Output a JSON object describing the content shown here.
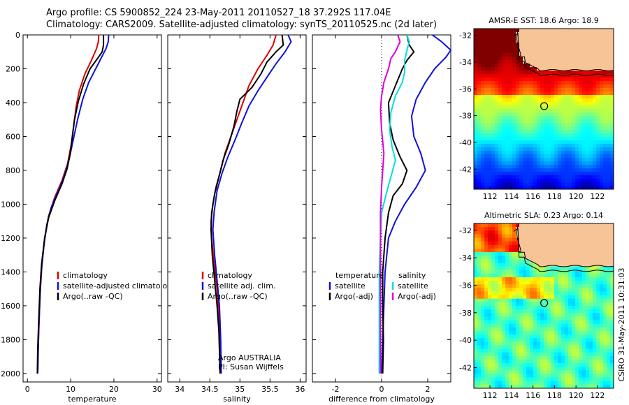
{
  "header": {
    "line1": "Argo profile: CS 5900852_224 23-May-2011 20110527_18 37.292S 117.04E",
    "line2": "Climatology: CARS2009. Satellite-adjusted climatology: synTS_20110525.nc (2d later)"
  },
  "side_note": "CSIRO 31-May-2011 10:31:03",
  "colors": {
    "climatology": "#dd0000",
    "satellite": "#1010dd",
    "argo": "#000000",
    "sat_salinity": "#00dddd",
    "argo_salinity": "#dd00dd"
  },
  "chart_data": [
    {
      "type": "line",
      "xlabel": "temperature",
      "xlim": [
        -1,
        31
      ],
      "xticks": [
        0,
        10,
        20,
        30
      ],
      "ylim": [
        2050,
        0
      ],
      "yticks": [
        0,
        200,
        400,
        600,
        800,
        1000,
        1200,
        1400,
        1600,
        1800,
        2000
      ],
      "legend": [
        "climatology",
        "satellite-adjusted climatolog",
        "Argo(..raw -QC)"
      ],
      "series": [
        {
          "name": "climatology",
          "color": "#dd0000",
          "points": [
            [
              16.5,
              0
            ],
            [
              16.4,
              40
            ],
            [
              16.0,
              80
            ],
            [
              14.8,
              150
            ],
            [
              13.3,
              230
            ],
            [
              12.0,
              330
            ],
            [
              11.3,
              420
            ],
            [
              10.8,
              520
            ],
            [
              10.2,
              640
            ],
            [
              9.3,
              760
            ],
            [
              8.0,
              860
            ],
            [
              6.3,
              960
            ],
            [
              4.9,
              1070
            ],
            [
              4.0,
              1200
            ],
            [
              3.4,
              1350
            ],
            [
              3.0,
              1500
            ],
            [
              2.7,
              1700
            ],
            [
              2.5,
              1850
            ],
            [
              2.4,
              2000
            ]
          ]
        },
        {
          "name": "satellite-adjusted climatolog",
          "color": "#1010dd",
          "points": [
            [
              18.8,
              0
            ],
            [
              18.7,
              40
            ],
            [
              18.2,
              80
            ],
            [
              17.2,
              130
            ],
            [
              15.8,
              200
            ],
            [
              14.2,
              280
            ],
            [
              12.8,
              380
            ],
            [
              11.6,
              500
            ],
            [
              10.6,
              620
            ],
            [
              9.7,
              730
            ],
            [
              8.6,
              830
            ],
            [
              7.0,
              930
            ],
            [
              5.5,
              1020
            ],
            [
              4.5,
              1120
            ],
            [
              3.8,
              1250
            ],
            [
              3.2,
              1400
            ],
            [
              2.9,
              1550
            ],
            [
              2.6,
              1750
            ],
            [
              2.4,
              2000
            ]
          ]
        },
        {
          "name": "Argo(..raw -QC)",
          "color": "#000000",
          "points": [
            [
              17.6,
              0
            ],
            [
              17.6,
              60
            ],
            [
              17.3,
              100
            ],
            [
              16.2,
              140
            ],
            [
              14.5,
              200
            ],
            [
              13.0,
              290
            ],
            [
              11.8,
              390
            ],
            [
              10.9,
              500
            ],
            [
              10.4,
              600
            ],
            [
              9.9,
              700
            ],
            [
              9.2,
              790
            ],
            [
              8.0,
              880
            ],
            [
              6.3,
              980
            ],
            [
              4.9,
              1080
            ],
            [
              4.0,
              1200
            ],
            [
              3.3,
              1350
            ],
            [
              2.9,
              1500
            ],
            [
              2.6,
              1700
            ],
            [
              2.4,
              1850
            ],
            [
              2.3,
              2000
            ]
          ]
        }
      ]
    },
    {
      "type": "line",
      "xlabel": "salinity",
      "xlim": [
        33.8,
        36.1
      ],
      "xticks": [
        34,
        34.5,
        35,
        35.5,
        36
      ],
      "xticklabels": [
        "34",
        "34.5",
        "35",
        "35.5",
        "36"
      ],
      "ylim": [
        2050,
        0
      ],
      "legend": [
        "climatology",
        "satellite adj. clim.",
        "Argo(..raw -QC)"
      ],
      "annotation": [
        "Argo AUSTRALIA",
        "PI: Susan Wijffels"
      ],
      "series": [
        {
          "name": "climatology",
          "color": "#dd0000",
          "points": [
            [
              35.6,
              0
            ],
            [
              35.55,
              60
            ],
            [
              35.45,
              120
            ],
            [
              35.3,
              200
            ],
            [
              35.15,
              300
            ],
            [
              35.05,
              400
            ],
            [
              34.95,
              500
            ],
            [
              34.85,
              600
            ],
            [
              34.75,
              700
            ],
            [
              34.68,
              800
            ],
            [
              34.6,
              900
            ],
            [
              34.55,
              1000
            ],
            [
              34.52,
              1100
            ],
            [
              34.53,
              1200
            ],
            [
              34.57,
              1350
            ],
            [
              34.62,
              1500
            ],
            [
              34.65,
              1650
            ],
            [
              34.67,
              1800
            ],
            [
              34.68,
              2000
            ]
          ]
        },
        {
          "name": "satellite adj. clim.",
          "color": "#1010dd",
          "points": [
            [
              35.8,
              0
            ],
            [
              35.85,
              40
            ],
            [
              35.75,
              100
            ],
            [
              35.6,
              170
            ],
            [
              35.45,
              250
            ],
            [
              35.3,
              330
            ],
            [
              35.15,
              420
            ],
            [
              35.03,
              520
            ],
            [
              34.92,
              620
            ],
            [
              34.8,
              720
            ],
            [
              34.7,
              820
            ],
            [
              34.62,
              920
            ],
            [
              34.57,
              1050
            ],
            [
              34.55,
              1150
            ],
            [
              34.58,
              1300
            ],
            [
              34.62,
              1450
            ],
            [
              34.66,
              1600
            ],
            [
              34.68,
              1800
            ],
            [
              34.69,
              2000
            ]
          ]
        },
        {
          "name": "Argo(..raw -QC)",
          "color": "#000000",
          "points": [
            [
              35.7,
              0
            ],
            [
              35.72,
              60
            ],
            [
              35.6,
              100
            ],
            [
              35.45,
              160
            ],
            [
              35.35,
              230
            ],
            [
              35.2,
              310
            ],
            [
              35.0,
              380
            ],
            [
              34.95,
              450
            ],
            [
              34.9,
              540
            ],
            [
              34.82,
              640
            ],
            [
              34.72,
              740
            ],
            [
              34.65,
              840
            ],
            [
              34.58,
              940
            ],
            [
              34.53,
              1050
            ],
            [
              34.52,
              1150
            ],
            [
              34.54,
              1300
            ],
            [
              34.58,
              1450
            ],
            [
              34.62,
              1600
            ],
            [
              34.65,
              1750
            ],
            [
              34.67,
              2000
            ]
          ]
        }
      ]
    },
    {
      "type": "line",
      "xlabel": "difference from climatology",
      "xlim": [
        -3,
        3
      ],
      "xticks": [
        -2,
        0,
        2
      ],
      "ylim": [
        2050,
        0
      ],
      "legend_temperature_header": "temperature",
      "legend_temperature": [
        "satellite",
        "Argo(-adj)"
      ],
      "legend_salinity_header": "salinity",
      "legend_salinity": [
        "satellite",
        "Argo(-adj)"
      ],
      "series": [
        {
          "name": "satellite",
          "color": "#1010dd",
          "points": [
            [
              2.2,
              0
            ],
            [
              2.6,
              40
            ],
            [
              3.0,
              90
            ],
            [
              2.8,
              130
            ],
            [
              2.3,
              200
            ],
            [
              1.9,
              280
            ],
            [
              1.5,
              380
            ],
            [
              1.3,
              480
            ],
            [
              1.4,
              600
            ],
            [
              1.7,
              700
            ],
            [
              1.9,
              800
            ],
            [
              1.5,
              900
            ],
            [
              1.0,
              1000
            ],
            [
              0.6,
              1100
            ],
            [
              0.3,
              1200
            ],
            [
              0.15,
              1400
            ],
            [
              0.1,
              1600
            ],
            [
              0.05,
              1800
            ],
            [
              0.0,
              2000
            ]
          ]
        },
        {
          "name": "Argo(-adj)",
          "color": "#000000",
          "points": [
            [
              1.1,
              0
            ],
            [
              1.2,
              60
            ],
            [
              1.4,
              100
            ],
            [
              1.1,
              150
            ],
            [
              0.9,
              200
            ],
            [
              0.6,
              300
            ],
            [
              0.3,
              400
            ],
            [
              0.35,
              520
            ],
            [
              0.5,
              620
            ],
            [
              0.8,
              720
            ],
            [
              1.1,
              800
            ],
            [
              0.9,
              880
            ],
            [
              0.5,
              950
            ],
            [
              0.3,
              1050
            ],
            [
              0.15,
              1200
            ],
            [
              0.05,
              1400
            ],
            [
              0.05,
              1600
            ],
            [
              0.08,
              1800
            ],
            [
              0.05,
              2000
            ]
          ]
        },
        {
          "name": "satellite",
          "color": "#00dddd",
          "points": [
            [
              1.1,
              0
            ],
            [
              1.2,
              40
            ],
            [
              1.1,
              90
            ],
            [
              1.0,
              150
            ],
            [
              1.0,
              220
            ],
            [
              0.9,
              280
            ],
            [
              0.6,
              360
            ],
            [
              0.4,
              460
            ],
            [
              0.35,
              560
            ],
            [
              0.45,
              660
            ],
            [
              0.6,
              740
            ],
            [
              0.4,
              840
            ],
            [
              0.2,
              940
            ],
            [
              0.0,
              1050
            ],
            [
              -0.05,
              1200
            ],
            [
              -0.1,
              1400
            ],
            [
              -0.1,
              1600
            ],
            [
              -0.1,
              1800
            ],
            [
              -0.1,
              2000
            ]
          ]
        },
        {
          "name": "Argo(-adj)",
          "color": "#dd00dd",
          "points": [
            [
              0.7,
              0
            ],
            [
              0.8,
              40
            ],
            [
              0.6,
              100
            ],
            [
              0.4,
              140
            ],
            [
              0.3,
              200
            ],
            [
              0.1,
              280
            ],
            [
              0.0,
              360
            ],
            [
              -0.05,
              440
            ],
            [
              0.0,
              560
            ],
            [
              0.1,
              700
            ],
            [
              0.05,
              800
            ],
            [
              0.0,
              900
            ],
            [
              -0.05,
              1050
            ],
            [
              -0.05,
              1200
            ],
            [
              -0.05,
              1400
            ],
            [
              -0.05,
              1600
            ],
            [
              -0.05,
              1800
            ],
            [
              -0.05,
              2000
            ]
          ]
        }
      ]
    },
    {
      "type": "heatmap",
      "title": "AMSR-E SST: 18.6 Argo: 18.9",
      "xlim": [
        110.5,
        123.5
      ],
      "ylim": [
        -43.5,
        -31.5
      ],
      "xticks": [
        112,
        114,
        116,
        118,
        120,
        122
      ],
      "yticks": [
        -32,
        -34,
        -36,
        -38,
        -40,
        -42
      ],
      "marker": {
        "lon": 117.04,
        "lat": -37.29
      }
    },
    {
      "type": "heatmap",
      "title": "Altimetric SLA: 0.23 Argo: 0.14",
      "xlim": [
        110.5,
        123.5
      ],
      "ylim": [
        -43.5,
        -31.5
      ],
      "xticks": [
        112,
        114,
        116,
        118,
        120,
        122
      ],
      "yticks": [
        -32,
        -34,
        -36,
        -38,
        -40,
        -42
      ],
      "marker": {
        "lon": 117.04,
        "lat": -37.29
      }
    }
  ]
}
